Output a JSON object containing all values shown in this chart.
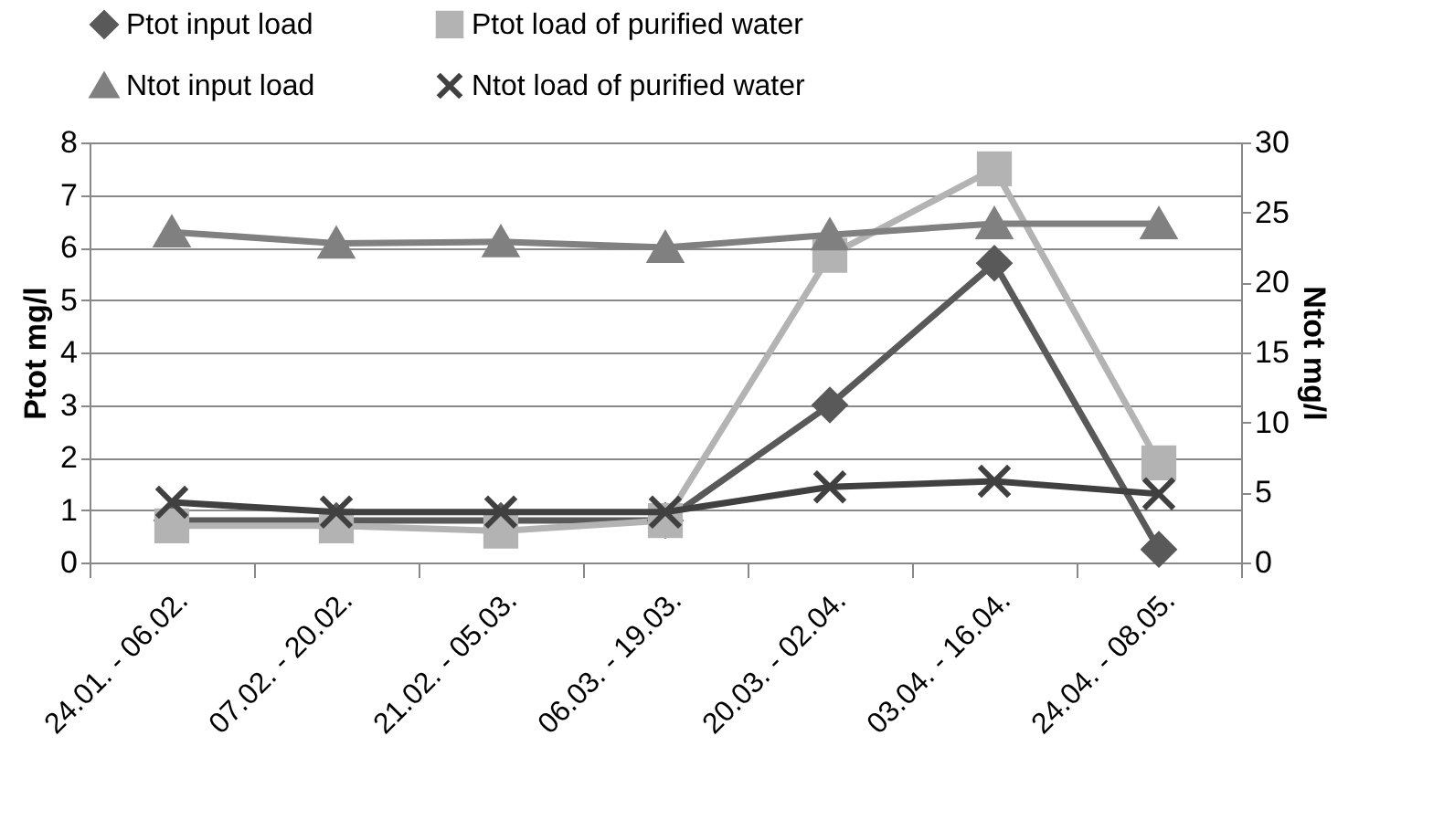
{
  "chart_data": {
    "type": "line",
    "categories": [
      "24.01. - 06.02.",
      "07.02. - 20.02.",
      "21.02. - 05.03.",
      "06.03. - 19.03.",
      "20.03. - 02.04.",
      "03.04. - 16.04.",
      "24.04. - 08.05."
    ],
    "ylabel": "Ptot mg/l",
    "y2label": "Ntot mg/l",
    "ylim": [
      0,
      8
    ],
    "yticks": [
      0,
      1,
      2,
      3,
      4,
      5,
      6,
      7,
      8
    ],
    "y2lim": [
      0,
      30
    ],
    "y2ticks": [
      0,
      5,
      10,
      15,
      20,
      25,
      30
    ],
    "grid": "y",
    "legend": "top",
    "series": [
      {
        "name": "Ptot input load",
        "color": "#595959",
        "marker": "diamond",
        "values": [
          0.8,
          0.8,
          0.8,
          0.8,
          3.0,
          5.7,
          0.25
        ]
      },
      {
        "name": "Ptot load of purified water",
        "color": "#b3b3b3",
        "marker": "square",
        "values": [
          0.7,
          0.7,
          0.6,
          0.8,
          5.85,
          7.5,
          1.9
        ]
      },
      {
        "name": "Ntot input load",
        "color": "#808080",
        "marker": "triangle",
        "axis": "y2",
        "values": [
          23.6,
          22.8,
          22.9,
          22.5,
          23.4,
          24.2,
          24.2
        ]
      },
      {
        "name": "Ntot load of purified water",
        "color": "#404040",
        "marker": "cross",
        "axis": "y2",
        "values": [
          4.3,
          3.6,
          3.6,
          3.6,
          5.4,
          5.8,
          4.9
        ]
      }
    ]
  }
}
